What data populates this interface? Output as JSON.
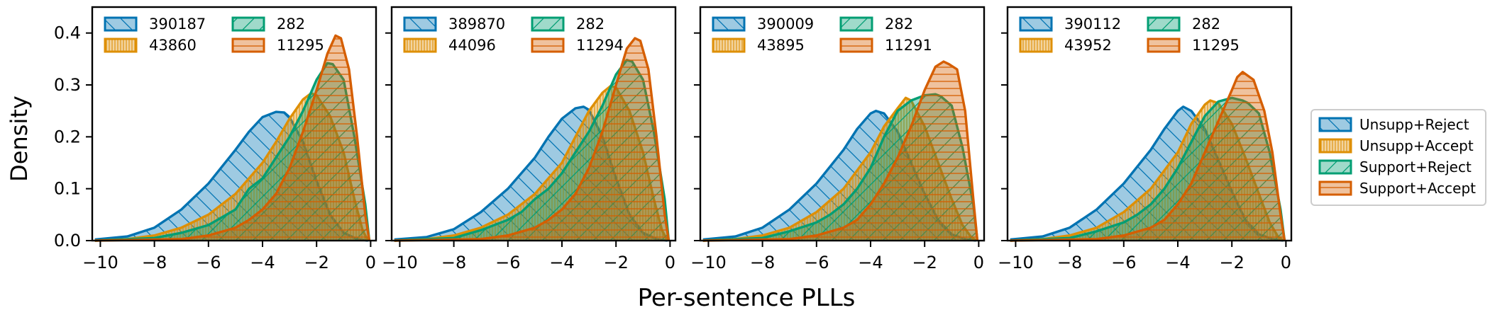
{
  "colors": {
    "Unsupp+Reject": "#0173b2",
    "Unsupp+Accept": "#de8f05",
    "Support+Reject": "#029e73",
    "Support+Accept": "#d55e00"
  },
  "shared": {
    "xlabel": "Per-sentence PLLs",
    "ylabel": "Density",
    "xticks": [
      "−10",
      "−8",
      "−6",
      "−4",
      "−2",
      "0"
    ],
    "yticks": [
      "0.0",
      "0.1",
      "0.2",
      "0.3",
      "0.4"
    ]
  },
  "legend": {
    "placement": "right, outside panels",
    "entries": [
      "Unsupp+Reject",
      "Unsupp+Accept",
      "Support+Reject",
      "Support+Accept"
    ]
  },
  "chart_data": [
    {
      "type": "area",
      "xlabel": "",
      "ylabel": "Density",
      "xlim": [
        -10.3,
        0.2
      ],
      "ylim": [
        0,
        0.45
      ],
      "legend_counts": [
        "390187",
        "43860",
        "282",
        "11295"
      ],
      "series": [
        {
          "name": "Unsupp+Reject",
          "x": [
            -10.2,
            -9,
            -8,
            -7,
            -6,
            -5,
            -4.5,
            -4,
            -3.5,
            -3.2,
            -3,
            -2.5,
            -2,
            -1.5,
            -1,
            -0.5,
            -0.1
          ],
          "values": [
            0.002,
            0.008,
            0.025,
            0.06,
            0.11,
            0.175,
            0.21,
            0.238,
            0.248,
            0.247,
            0.238,
            0.19,
            0.115,
            0.05,
            0.015,
            0.003,
            0.0
          ]
        },
        {
          "name": "Unsupp+Accept",
          "x": [
            -10.2,
            -9,
            -8,
            -7,
            -6,
            -5,
            -4,
            -3.5,
            -3,
            -2.5,
            -2.2,
            -2,
            -1.5,
            -1,
            -0.6,
            -0.3,
            -0.1
          ],
          "values": [
            0.0,
            0.003,
            0.01,
            0.025,
            0.05,
            0.09,
            0.15,
            0.19,
            0.235,
            0.272,
            0.284,
            0.28,
            0.24,
            0.17,
            0.08,
            0.02,
            0.0
          ]
        },
        {
          "name": "Support+Reject",
          "x": [
            -10.2,
            -8,
            -7,
            -6,
            -5.5,
            -5,
            -4.5,
            -4,
            -3.5,
            -3,
            -2.5,
            -2,
            -1.6,
            -1.4,
            -1,
            -0.6,
            -0.2,
            -0.05
          ],
          "values": [
            0.0,
            0.005,
            0.015,
            0.03,
            0.045,
            0.06,
            0.1,
            0.12,
            0.16,
            0.2,
            0.25,
            0.31,
            0.342,
            0.34,
            0.31,
            0.2,
            0.07,
            0.0
          ]
        },
        {
          "name": "Support+Accept",
          "x": [
            -10.2,
            -7,
            -6,
            -5,
            -4.5,
            -4,
            -3.5,
            -3,
            -2.5,
            -2,
            -1.6,
            -1.3,
            -1.1,
            -0.8,
            -0.5,
            -0.2,
            -0.05
          ],
          "values": [
            0.0,
            0.003,
            0.01,
            0.025,
            0.04,
            0.06,
            0.09,
            0.14,
            0.21,
            0.29,
            0.36,
            0.395,
            0.39,
            0.33,
            0.2,
            0.05,
            0.0
          ]
        }
      ]
    },
    {
      "type": "area",
      "xlabel": "",
      "ylabel": "",
      "xlim": [
        -10.3,
        0.2
      ],
      "ylim": [
        0,
        0.45
      ],
      "legend_counts": [
        "389870",
        "44096",
        "282",
        "11294"
      ],
      "series": [
        {
          "name": "Unsupp+Reject",
          "x": [
            -10.2,
            -9,
            -8,
            -7,
            -6,
            -5,
            -4.5,
            -4,
            -3.5,
            -3.2,
            -3,
            -2.5,
            -2,
            -1.5,
            -1,
            -0.5,
            -0.1
          ],
          "values": [
            0.002,
            0.007,
            0.022,
            0.055,
            0.1,
            0.16,
            0.2,
            0.235,
            0.255,
            0.258,
            0.252,
            0.2,
            0.12,
            0.05,
            0.015,
            0.003,
            0.0
          ]
        },
        {
          "name": "Unsupp+Accept",
          "x": [
            -10.2,
            -9,
            -8,
            -7,
            -6,
            -5,
            -4,
            -3.5,
            -3,
            -2.5,
            -2.2,
            -2,
            -1.5,
            -1,
            -0.6,
            -0.3,
            -0.1
          ],
          "values": [
            0.0,
            0.003,
            0.01,
            0.025,
            0.05,
            0.09,
            0.15,
            0.2,
            0.25,
            0.285,
            0.298,
            0.295,
            0.25,
            0.17,
            0.08,
            0.02,
            0.0
          ]
        },
        {
          "name": "Support+Reject",
          "x": [
            -10.2,
            -8,
            -7,
            -6,
            -5.5,
            -5,
            -4.5,
            -4,
            -3.5,
            -3,
            -2.5,
            -2,
            -1.6,
            -1.4,
            -1,
            -0.6,
            -0.2,
            -0.05
          ],
          "values": [
            0.0,
            0.005,
            0.02,
            0.04,
            0.055,
            0.08,
            0.1,
            0.13,
            0.17,
            0.21,
            0.26,
            0.32,
            0.348,
            0.345,
            0.31,
            0.21,
            0.08,
            0.0
          ]
        },
        {
          "name": "Support+Accept",
          "x": [
            -10.2,
            -7,
            -6,
            -5,
            -4.5,
            -4,
            -3.5,
            -3,
            -2.5,
            -2,
            -1.6,
            -1.3,
            -1.1,
            -0.8,
            -0.5,
            -0.2,
            -0.05
          ],
          "values": [
            0.0,
            0.003,
            0.01,
            0.025,
            0.04,
            0.06,
            0.09,
            0.14,
            0.21,
            0.3,
            0.37,
            0.39,
            0.385,
            0.33,
            0.2,
            0.05,
            0.0
          ]
        }
      ]
    },
    {
      "type": "area",
      "xlabel": "",
      "ylabel": "",
      "xlim": [
        -10.3,
        0.2
      ],
      "ylim": [
        0,
        0.45
      ],
      "legend_counts": [
        "390009",
        "43895",
        "282",
        "11291"
      ],
      "series": [
        {
          "name": "Unsupp+Reject",
          "x": [
            -10.2,
            -9,
            -8,
            -7,
            -6,
            -5,
            -4.5,
            -4,
            -3.8,
            -3.5,
            -3,
            -2.5,
            -2,
            -1.5,
            -1,
            -0.5,
            -0.1
          ],
          "values": [
            0.002,
            0.008,
            0.025,
            0.06,
            0.11,
            0.175,
            0.215,
            0.245,
            0.25,
            0.245,
            0.21,
            0.15,
            0.09,
            0.04,
            0.012,
            0.003,
            0.0
          ]
        },
        {
          "name": "Unsupp+Accept",
          "x": [
            -10.2,
            -9,
            -8,
            -7,
            -6,
            -5,
            -4,
            -3.5,
            -3,
            -2.7,
            -2.5,
            -2,
            -1.5,
            -1,
            -0.6,
            -0.3,
            -0.1
          ],
          "values": [
            0.0,
            0.003,
            0.01,
            0.025,
            0.055,
            0.1,
            0.17,
            0.22,
            0.255,
            0.275,
            0.27,
            0.22,
            0.15,
            0.08,
            0.03,
            0.008,
            0.0
          ]
        },
        {
          "name": "Support+Reject",
          "x": [
            -10.2,
            -8,
            -7,
            -6,
            -5.5,
            -5,
            -4.5,
            -4,
            -3.5,
            -3,
            -2.5,
            -2,
            -1.6,
            -1.4,
            -1,
            -0.6,
            -0.2,
            -0.05
          ],
          "values": [
            0.0,
            0.005,
            0.018,
            0.035,
            0.05,
            0.07,
            0.1,
            0.14,
            0.2,
            0.25,
            0.27,
            0.28,
            0.282,
            0.278,
            0.26,
            0.18,
            0.07,
            0.0
          ]
        },
        {
          "name": "Support+Accept",
          "x": [
            -10.2,
            -7,
            -6,
            -5,
            -4.5,
            -4,
            -3.5,
            -3,
            -2.5,
            -2,
            -1.6,
            -1.3,
            -1.1,
            -0.8,
            -0.5,
            -0.2,
            -0.05
          ],
          "values": [
            0.0,
            0.003,
            0.01,
            0.025,
            0.04,
            0.07,
            0.11,
            0.16,
            0.22,
            0.29,
            0.335,
            0.345,
            0.34,
            0.33,
            0.25,
            0.08,
            0.0
          ]
        }
      ]
    },
    {
      "type": "area",
      "xlabel": "",
      "ylabel": "",
      "xlim": [
        -10.3,
        0.2
      ],
      "ylim": [
        0,
        0.45
      ],
      "legend_counts": [
        "390112",
        "43952",
        "282",
        "11295"
      ],
      "series": [
        {
          "name": "Unsupp+Reject",
          "x": [
            -10.2,
            -9,
            -8,
            -7,
            -6,
            -5,
            -4.5,
            -4,
            -3.8,
            -3.5,
            -3,
            -2.5,
            -2,
            -1.5,
            -1,
            -0.5,
            -0.1
          ],
          "values": [
            0.002,
            0.008,
            0.025,
            0.06,
            0.11,
            0.175,
            0.215,
            0.25,
            0.258,
            0.25,
            0.215,
            0.155,
            0.095,
            0.04,
            0.012,
            0.003,
            0.0
          ]
        },
        {
          "name": "Unsupp+Accept",
          "x": [
            -10.2,
            -9,
            -8,
            -7,
            -6,
            -5,
            -4,
            -3.5,
            -3,
            -2.8,
            -2.5,
            -2,
            -1.5,
            -1,
            -0.6,
            -0.3,
            -0.1
          ],
          "values": [
            0.0,
            0.003,
            0.01,
            0.025,
            0.055,
            0.1,
            0.17,
            0.225,
            0.262,
            0.27,
            0.265,
            0.225,
            0.16,
            0.09,
            0.035,
            0.008,
            0.0
          ]
        },
        {
          "name": "Support+Reject",
          "x": [
            -10.2,
            -8,
            -7,
            -6,
            -5.5,
            -5,
            -4.5,
            -4,
            -3.5,
            -3,
            -2.5,
            -2,
            -1.6,
            -1.4,
            -1,
            -0.6,
            -0.2,
            -0.05
          ],
          "values": [
            0.0,
            0.005,
            0.018,
            0.035,
            0.05,
            0.07,
            0.1,
            0.14,
            0.19,
            0.24,
            0.268,
            0.275,
            0.27,
            0.265,
            0.245,
            0.17,
            0.06,
            0.0
          ]
        },
        {
          "name": "Support+Accept",
          "x": [
            -10.2,
            -7,
            -6,
            -5,
            -4.5,
            -4,
            -3.5,
            -3,
            -2.5,
            -2,
            -1.8,
            -1.6,
            -1.2,
            -0.8,
            -0.5,
            -0.2,
            -0.05
          ],
          "values": [
            0.0,
            0.003,
            0.01,
            0.025,
            0.04,
            0.07,
            0.11,
            0.17,
            0.23,
            0.29,
            0.315,
            0.325,
            0.31,
            0.25,
            0.17,
            0.05,
            0.0
          ]
        }
      ]
    }
  ]
}
